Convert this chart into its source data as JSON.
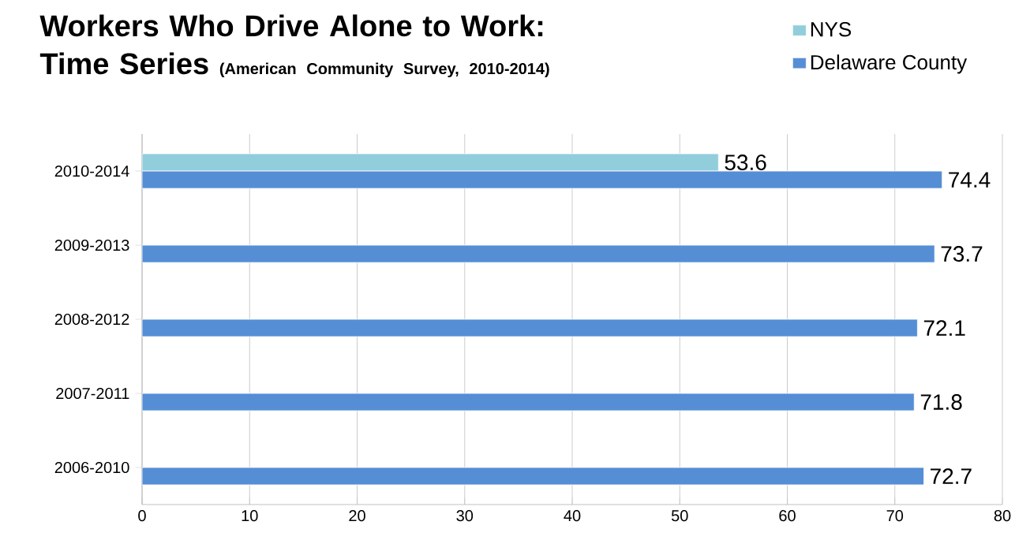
{
  "chart_data": {
    "type": "bar",
    "orientation": "horizontal",
    "title": "Workers Who Drive Alone to Work: Time Series",
    "subtitle": "(American Community Survey, 2010-2014)",
    "categories": [
      "2010-2014",
      "2009-2013",
      "2008-2012",
      "2007-2011",
      "2006-2010"
    ],
    "series": [
      {
        "name": "NYS",
        "color": "#92cddc",
        "values": [
          53.6,
          null,
          null,
          null,
          null
        ]
      },
      {
        "name": "Delaware County",
        "color": "#558ed5",
        "values": [
          74.4,
          73.7,
          72.1,
          71.8,
          72.7
        ]
      }
    ],
    "xlim": [
      0,
      80
    ],
    "xticks": [
      0,
      10,
      20,
      30,
      40,
      50,
      60,
      70,
      80
    ],
    "grid": "x",
    "legend": "top right",
    "data_labels": true
  }
}
